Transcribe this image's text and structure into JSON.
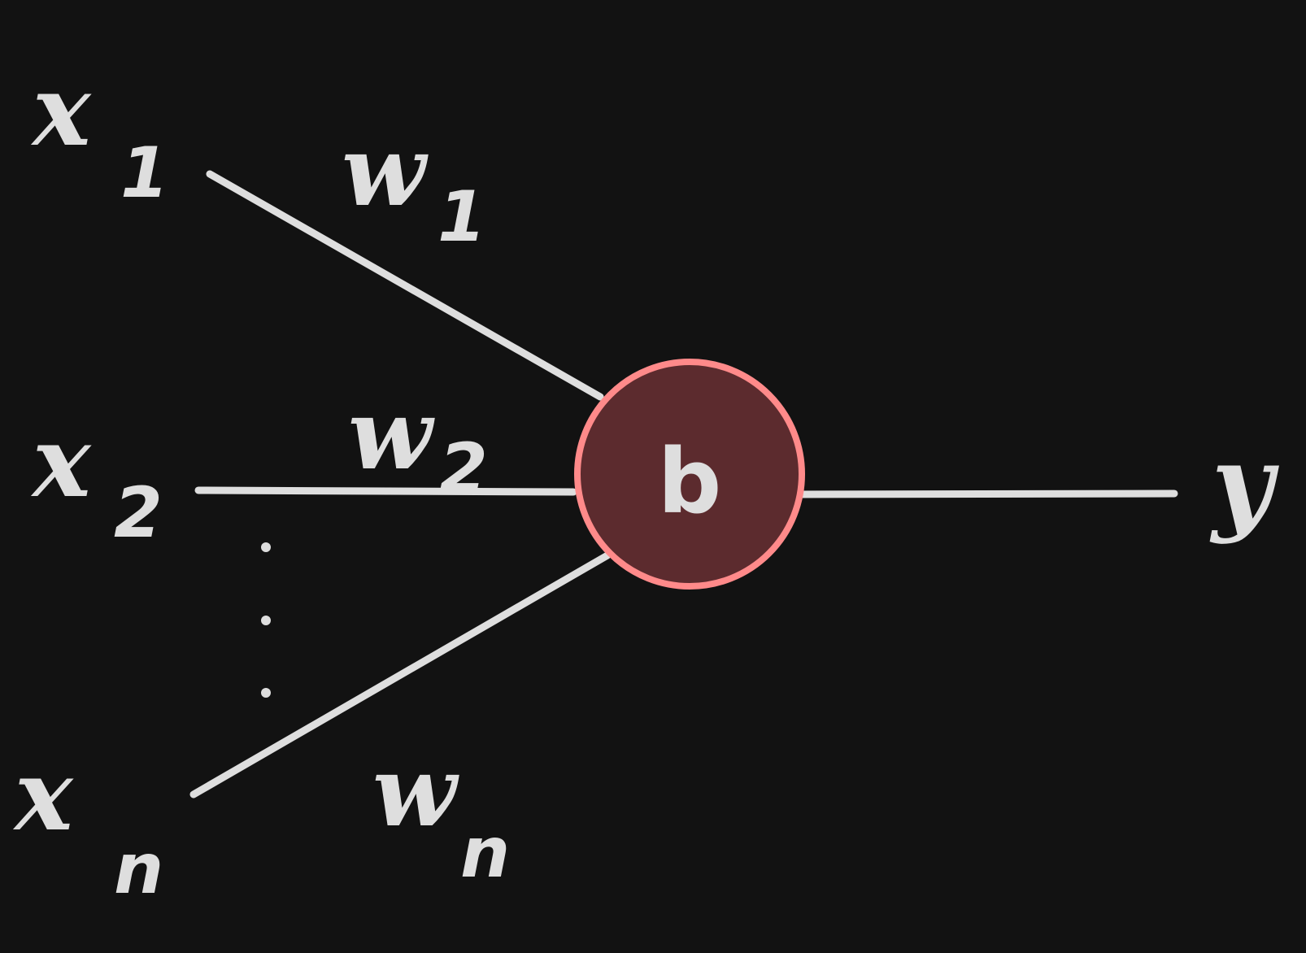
{
  "diagram": {
    "title": "",
    "colors": {
      "background": "#121212",
      "stroke": "#dedede",
      "neuron_fill": "#5c2b2e",
      "neuron_outline": "#ff8a8a"
    },
    "inputs": [
      {
        "symbol": "x",
        "index": "1"
      },
      {
        "symbol": "x",
        "index": "2"
      },
      {
        "symbol": "x",
        "index": "n"
      }
    ],
    "weights": [
      {
        "symbol": "w",
        "index": "1"
      },
      {
        "symbol": "w",
        "index": "2"
      },
      {
        "symbol": "w",
        "index": "n"
      }
    ],
    "neuron": {
      "label": "b"
    },
    "output": {
      "symbol": "y"
    }
  }
}
